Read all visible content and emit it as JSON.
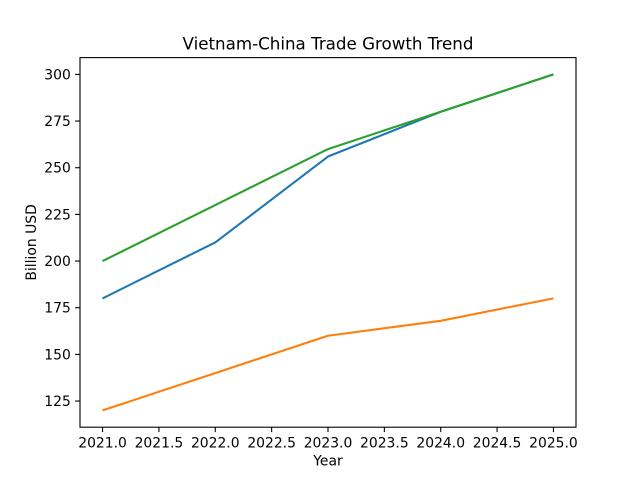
{
  "chart_data": {
    "type": "line",
    "title": "Vietnam-China Trade Growth Trend",
    "xlabel": "Year",
    "ylabel": "Billion USD",
    "x": [
      2021,
      2022,
      2023,
      2024,
      2025
    ],
    "series": [
      {
        "name": "blue",
        "color": "#1f77b4",
        "values": [
          180,
          210,
          256,
          280,
          300
        ]
      },
      {
        "name": "orange",
        "color": "#ff7f0e",
        "values": [
          120,
          140,
          160,
          168,
          180
        ]
      },
      {
        "name": "green",
        "color": "#2ca02c",
        "values": [
          200,
          230,
          260,
          280,
          300
        ]
      }
    ],
    "xlim": [
      2020.8,
      2025.2
    ],
    "ylim": [
      111,
      309
    ],
    "x_tick_labels": [
      "2021.0",
      "2021.5",
      "2022.0",
      "2022.5",
      "2023.0",
      "2023.5",
      "2024.0",
      "2024.5",
      "2025.0"
    ],
    "y_tick_labels": [
      "125",
      "150",
      "175",
      "200",
      "225",
      "250",
      "275",
      "300"
    ],
    "grid": false,
    "legend": "none",
    "axis_color": "#000000",
    "background_color": "#ffffff"
  }
}
